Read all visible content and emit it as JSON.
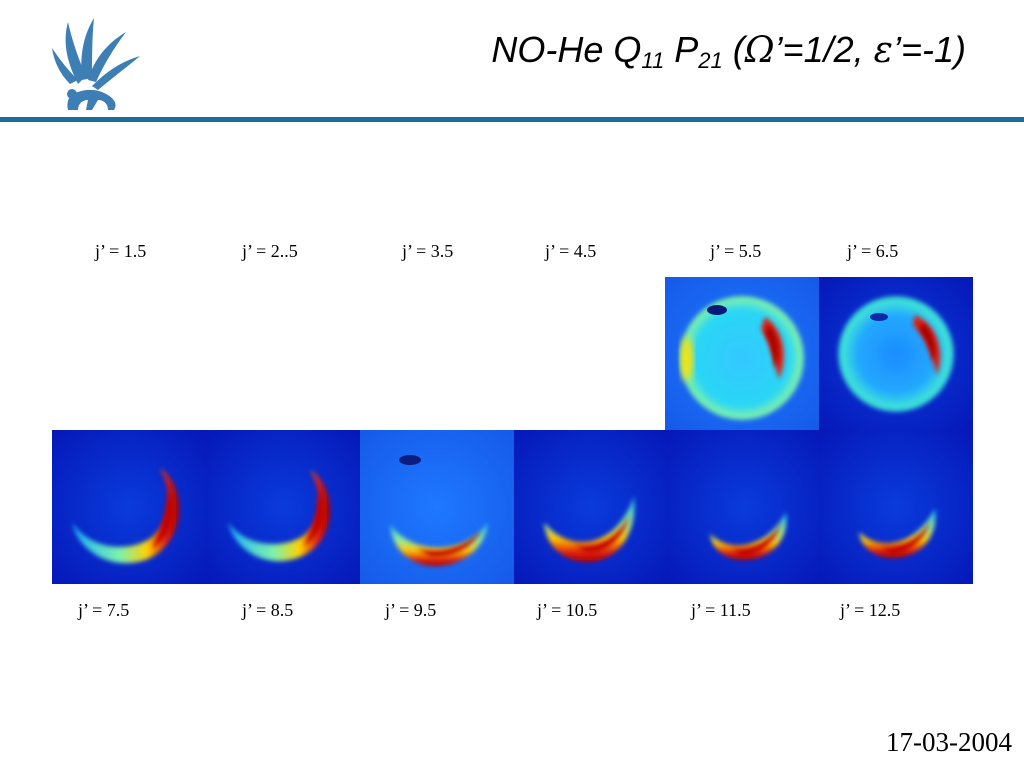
{
  "slide": {
    "title_main": "NO-He Q",
    "title_sub1": "11",
    "title_p": " P",
    "title_sub2": "21",
    "title_open": " (",
    "title_omega": "Ω",
    "title_mid": "’=1/2, ",
    "title_eps": "ε",
    "title_end": "’=-1)",
    "date": "17-03-2004"
  },
  "top_labels": [
    "j’ = 1.5",
    "j’ = 2..5",
    "j’ = 3.5",
    "j’ = 4.5",
    "j’ = 5.5",
    "j’ = 6.5"
  ],
  "bottom_labels": [
    "j’ = 7.5",
    "j’ = 8.5",
    "j’ = 9.5",
    "j’ = 10.5",
    "j’ = 11.5",
    "j’ = 12.5"
  ],
  "colors": {
    "rule": "#1a6e9c",
    "logo": "#3d7fb5"
  }
}
